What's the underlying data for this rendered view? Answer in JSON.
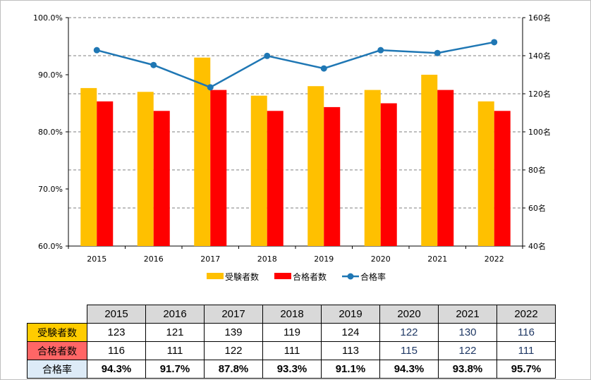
{
  "chart_data": {
    "type": "bar+line",
    "categories": [
      "2015",
      "2016",
      "2017",
      "2018",
      "2019",
      "2020",
      "2021",
      "2022"
    ],
    "series": [
      {
        "name": "受験者数",
        "kind": "bar",
        "axis": "right",
        "color": "#ffc000",
        "values": [
          123,
          121,
          139,
          119,
          124,
          122,
          130,
          116
        ]
      },
      {
        "name": "合格者数",
        "kind": "bar",
        "axis": "right",
        "color": "#ff0000",
        "values": [
          116,
          111,
          122,
          111,
          113,
          115,
          122,
          111
        ]
      },
      {
        "name": "合格率",
        "kind": "line",
        "axis": "left",
        "color": "#1f77b4",
        "values": [
          94.3,
          91.7,
          87.8,
          93.3,
          91.1,
          94.3,
          93.8,
          95.7
        ]
      }
    ],
    "y_left": {
      "range": [
        60,
        100
      ],
      "ticks": [
        "60.0%",
        "70.0%",
        "80.0%",
        "90.0%",
        "100.0%"
      ]
    },
    "y_right": {
      "range": [
        40,
        160
      ],
      "ticks": [
        "40名",
        "60名",
        "80名",
        "100名",
        "120名",
        "140名",
        "160名"
      ]
    },
    "grid": true,
    "legend": "bottom"
  },
  "table": {
    "years": [
      "2015",
      "2016",
      "2017",
      "2018",
      "2019",
      "2020",
      "2021",
      "2022"
    ],
    "rows": [
      {
        "label": "受験者数",
        "label_bg": "#ffcc00",
        "values": [
          "123",
          "121",
          "139",
          "119",
          "124",
          "122",
          "130",
          "116"
        ]
      },
      {
        "label": "合格者数",
        "label_bg": "#ff6666",
        "values": [
          "116",
          "111",
          "122",
          "111",
          "113",
          "115",
          "122",
          "111"
        ]
      },
      {
        "label": "合格率",
        "label_bg": "#ddebf7",
        "values": [
          "94.3%",
          "91.7%",
          "87.8%",
          "93.3%",
          "91.1%",
          "94.3%",
          "93.8%",
          "95.7%"
        ]
      }
    ]
  }
}
